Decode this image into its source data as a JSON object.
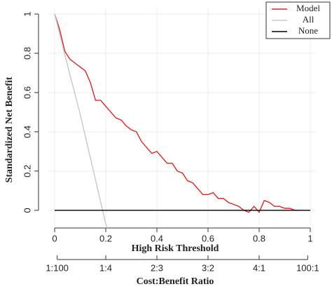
{
  "chart_data": {
    "type": "line",
    "xlabel": "High Risk Threshold",
    "x2label": "Cost:Benefit Ratio",
    "ylabel": "Standardized Net Benefit",
    "xlim": [
      0,
      1
    ],
    "xticks": [
      0.0,
      0.2,
      0.4,
      0.6,
      0.8,
      1.0
    ],
    "x2ticks": [
      {
        "value": 0.01,
        "label": "1:100"
      },
      {
        "value": 0.2,
        "label": "1:4"
      },
      {
        "value": 0.4,
        "label": "2:3"
      },
      {
        "value": 0.6,
        "label": "3:2"
      },
      {
        "value": 0.8,
        "label": "4:1"
      },
      {
        "value": 0.99,
        "label": "100:1"
      }
    ],
    "ylim": [
      -0.09,
      1.0
    ],
    "yticks": [
      0.0,
      0.2,
      0.4,
      0.6,
      0.8,
      1.0
    ],
    "grid": true,
    "legend": "top-right",
    "series": [
      {
        "name": "Model",
        "color": "#d62728",
        "x": [
          0,
          0.02,
          0.04,
          0.06,
          0.08,
          0.1,
          0.12,
          0.14,
          0.16,
          0.18,
          0.2,
          0.22,
          0.24,
          0.26,
          0.28,
          0.3,
          0.32,
          0.34,
          0.36,
          0.38,
          0.4,
          0.42,
          0.44,
          0.46,
          0.48,
          0.5,
          0.52,
          0.54,
          0.56,
          0.58,
          0.6,
          0.62,
          0.64,
          0.66,
          0.68,
          0.7,
          0.72,
          0.74,
          0.76,
          0.78,
          0.8,
          0.82,
          0.84,
          0.86,
          0.88,
          0.9,
          0.92,
          0.94,
          0.96
        ],
        "values": [
          1.0,
          0.92,
          0.81,
          0.77,
          0.75,
          0.73,
          0.71,
          0.65,
          0.56,
          0.56,
          0.53,
          0.5,
          0.47,
          0.46,
          0.43,
          0.41,
          0.4,
          0.35,
          0.32,
          0.29,
          0.3,
          0.27,
          0.24,
          0.24,
          0.2,
          0.19,
          0.15,
          0.14,
          0.11,
          0.08,
          0.08,
          0.09,
          0.06,
          0.06,
          0.04,
          0.03,
          0.02,
          0.0,
          -0.01,
          0.02,
          -0.01,
          0.05,
          0.04,
          0.02,
          0.02,
          0.01,
          0.01,
          0.0,
          0.0
        ]
      },
      {
        "name": "All",
        "color": "#c8c8c8",
        "x": [
          0,
          0.05,
          0.1,
          0.15,
          0.2,
          0.205
        ],
        "values": [
          1.0,
          0.74,
          0.49,
          0.21,
          -0.07,
          -0.09
        ]
      },
      {
        "name": "None",
        "color": "#000000",
        "x": [
          0,
          1
        ],
        "values": [
          0,
          0
        ]
      }
    ]
  }
}
